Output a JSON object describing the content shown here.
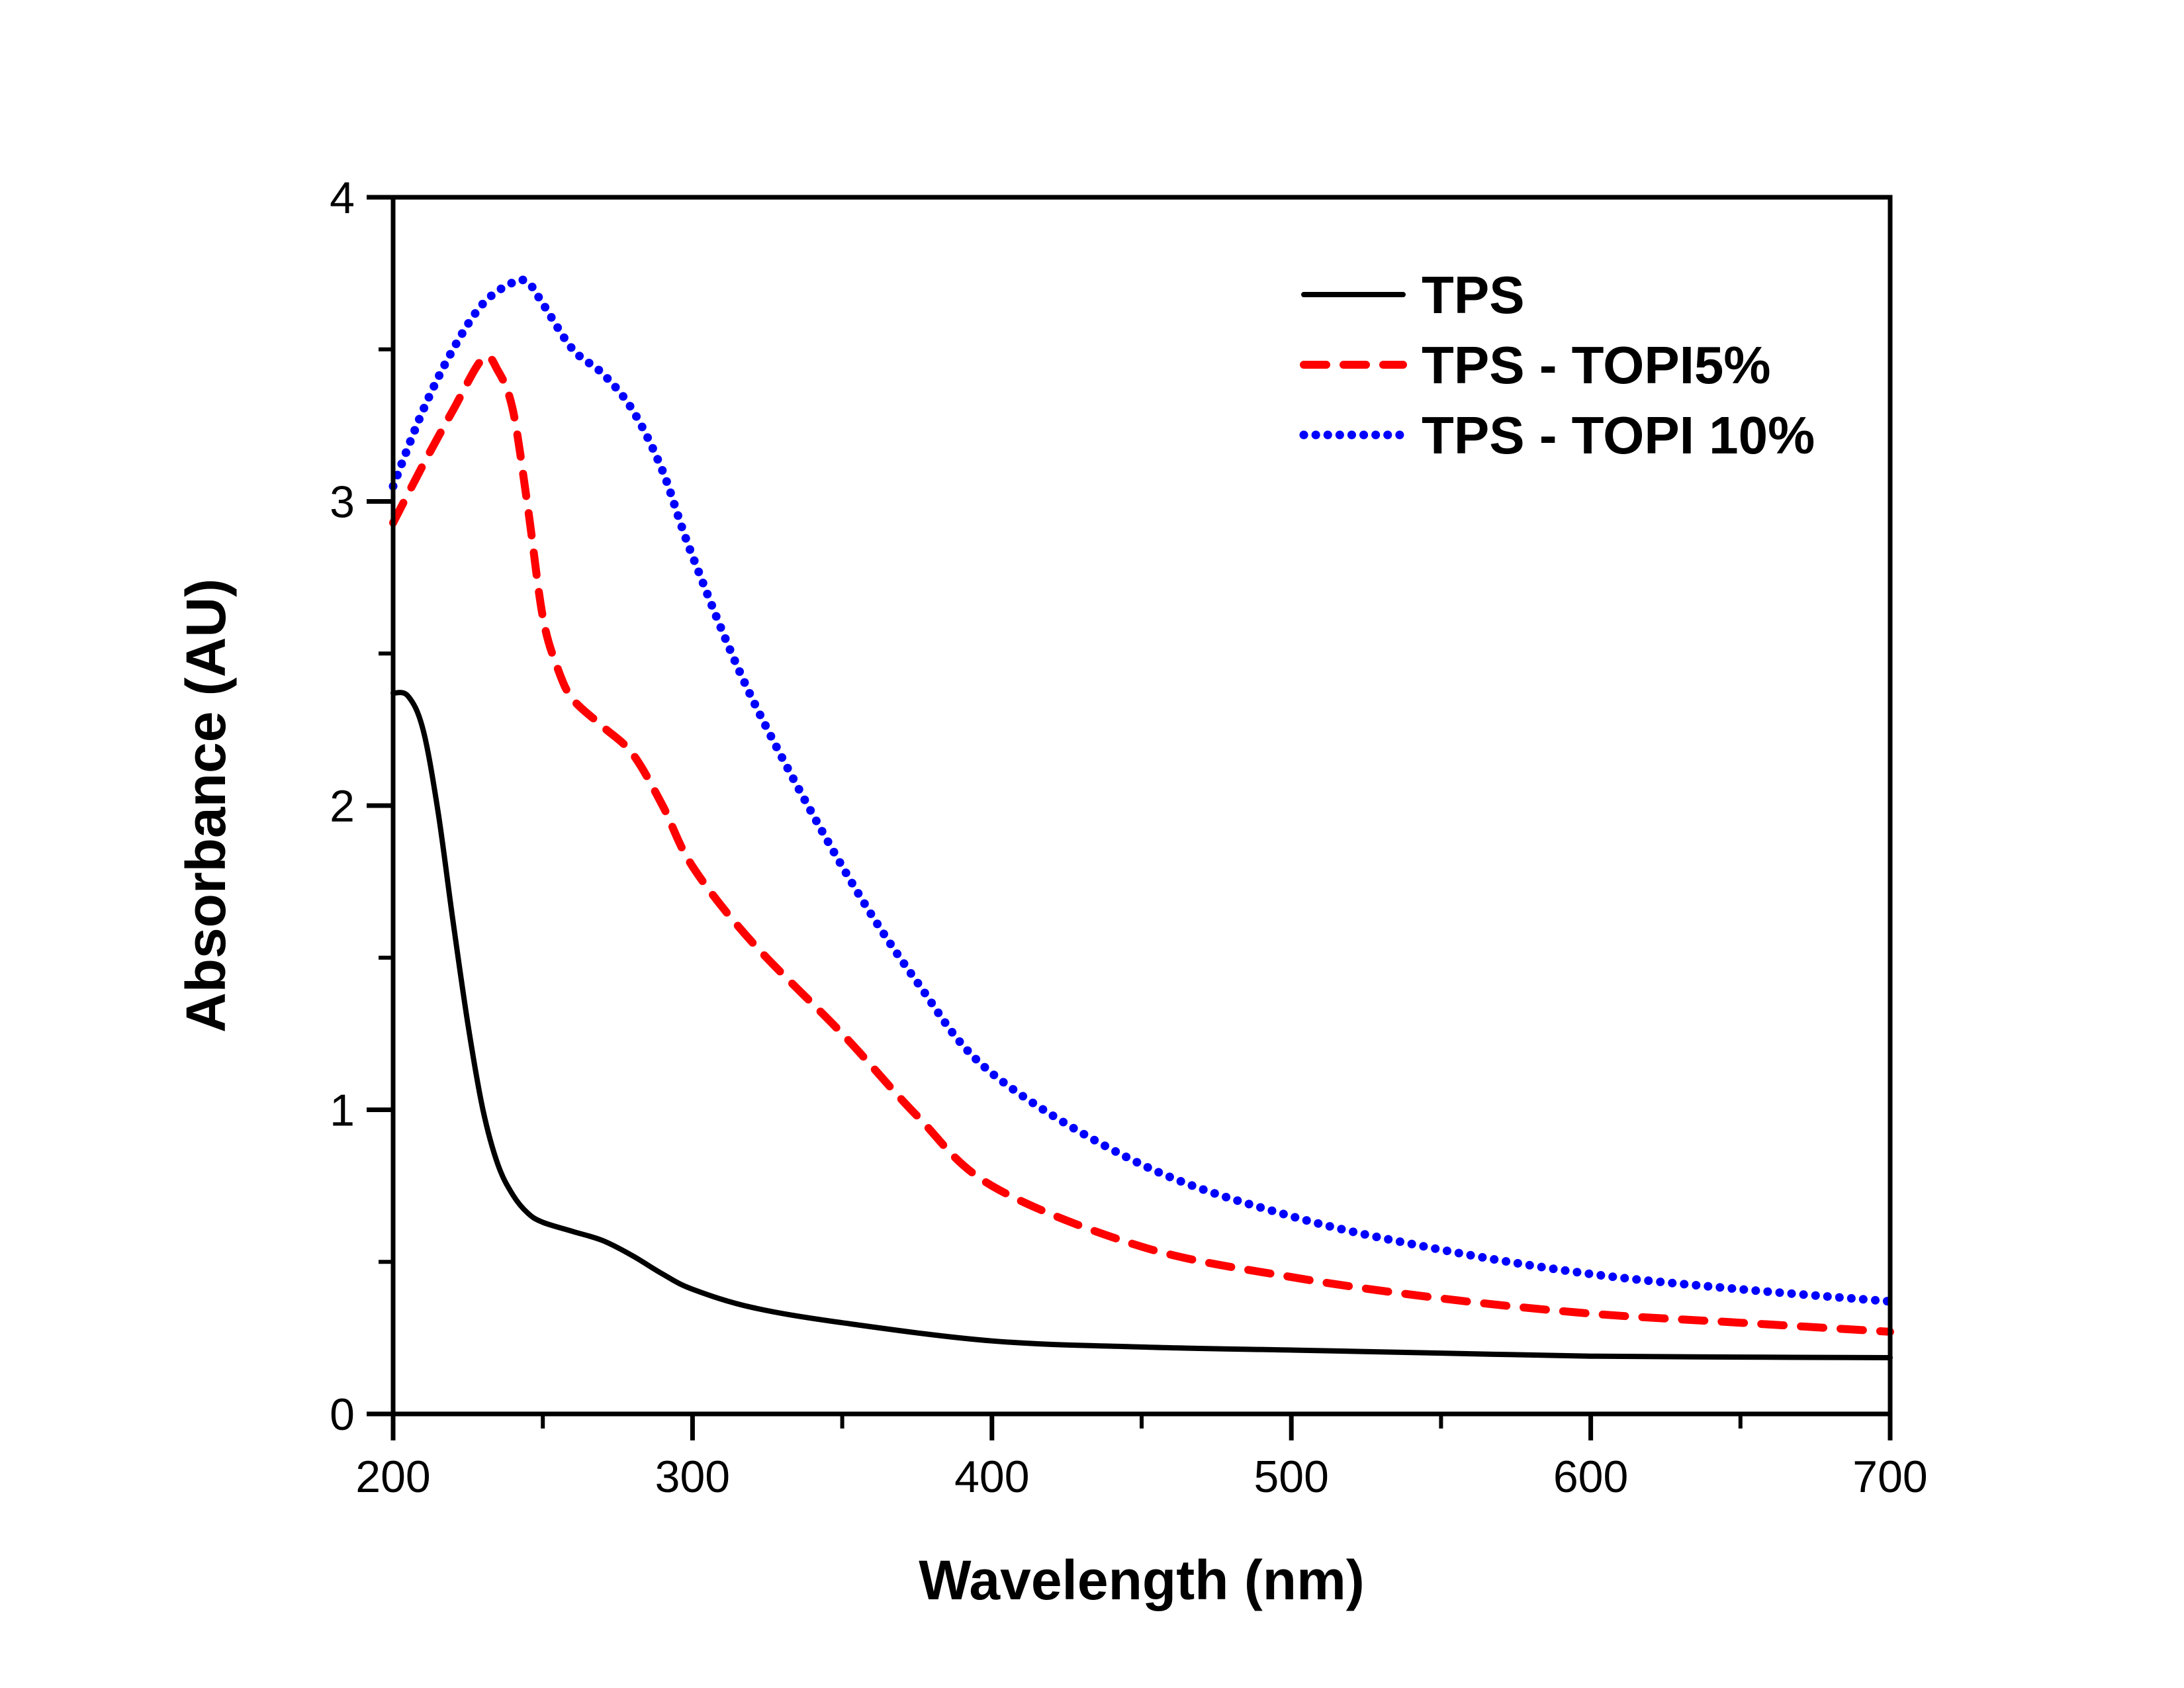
{
  "chart_data": {
    "type": "line",
    "title": "",
    "xlabel": "Wavelength (nm)",
    "ylabel": "Absorbance (AU)",
    "xlim": [
      200,
      700
    ],
    "ylim": [
      0,
      4
    ],
    "xticks": [
      200,
      300,
      400,
      500,
      600,
      700
    ],
    "xtick_labels": [
      "200",
      "300",
      "400",
      "500",
      "600",
      "700"
    ],
    "x_minor_ticks": [
      250,
      350,
      450,
      550,
      650
    ],
    "yticks": [
      0,
      1,
      2,
      3,
      4
    ],
    "ytick_labels": [
      "0",
      "1",
      "2",
      "3",
      "4"
    ],
    "y_minor_ticks": [
      0.5,
      1.5,
      2.5,
      3.5
    ],
    "grid": false,
    "legend_position": "top-right",
    "series": [
      {
        "name": "TPS",
        "color": "#000000",
        "style": "solid",
        "x": [
          200,
          205,
          210,
          215,
          220,
          225,
          230,
          235,
          240,
          245,
          250,
          260,
          270,
          280,
          290,
          300,
          320,
          350,
          400,
          450,
          500,
          550,
          600,
          650,
          700
        ],
        "y": [
          2.37,
          2.36,
          2.25,
          1.98,
          1.62,
          1.28,
          1.0,
          0.82,
          0.72,
          0.66,
          0.63,
          0.6,
          0.57,
          0.52,
          0.46,
          0.41,
          0.35,
          0.3,
          0.24,
          0.22,
          0.21,
          0.2,
          0.19,
          0.187,
          0.185
        ]
      },
      {
        "name": "TPS - TOPI5%",
        "color": "#ff0000",
        "style": "dashed",
        "x": [
          200,
          210,
          220,
          230,
          235,
          240,
          245,
          250,
          255,
          260,
          270,
          280,
          290,
          300,
          320,
          350,
          375,
          400,
          450,
          500,
          550,
          600,
          650,
          700
        ],
        "y": [
          2.93,
          3.12,
          3.3,
          3.47,
          3.43,
          3.3,
          2.98,
          2.62,
          2.45,
          2.35,
          2.26,
          2.17,
          2.0,
          1.8,
          1.55,
          1.25,
          0.98,
          0.75,
          0.55,
          0.45,
          0.38,
          0.33,
          0.3,
          0.27
        ]
      },
      {
        "name": "TPS - TOPI 10%",
        "color": "#0000ff",
        "style": "dotted",
        "x": [
          200,
          210,
          220,
          230,
          240,
          245,
          250,
          260,
          270,
          280,
          290,
          300,
          320,
          350,
          375,
          400,
          450,
          500,
          550,
          600,
          650,
          700
        ],
        "y": [
          3.05,
          3.3,
          3.5,
          3.65,
          3.72,
          3.72,
          3.65,
          3.5,
          3.42,
          3.3,
          3.1,
          2.82,
          2.35,
          1.8,
          1.42,
          1.12,
          0.82,
          0.65,
          0.54,
          0.46,
          0.41,
          0.37
        ]
      }
    ]
  }
}
